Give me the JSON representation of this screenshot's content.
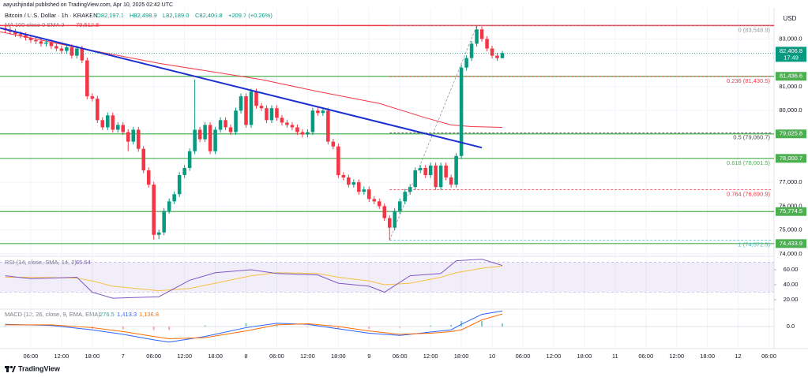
{
  "chart_data": {
    "type": "candlestick",
    "publisher": "aayushjindal published on TradingView.com, Apr 10, 2025 02:42 UTC",
    "title": "Bitcoin / U.S. Dollar · 1h · KRAKEN",
    "ohlc_legend": [
      "O82,197.1",
      "H82,498.9",
      "L82,189.0",
      "C82,406.8",
      "+209.7 (+0.26%)"
    ],
    "ma_legend": "MA 100 close 0 SMA 9",
    "ma_value": "79,512.8",
    "currency": "USD",
    "last_price": {
      "value": 82406.8,
      "label": "82,406.8"
    },
    "countdown": "17:49",
    "brand": "TradingView",
    "up_color": "#089981",
    "down_color": "#f23645",
    "grid": true,
    "xlim": [
      0,
      151
    ],
    "xticks": [
      {
        "value": 6,
        "label": "06:00"
      },
      {
        "value": 12,
        "label": "12:00"
      },
      {
        "value": 18,
        "label": "18:00"
      },
      {
        "value": 24,
        "label": "7"
      },
      {
        "value": 30,
        "label": "06:00"
      },
      {
        "value": 36,
        "label": "12:00"
      },
      {
        "value": 42,
        "label": "18:00"
      },
      {
        "value": 48,
        "label": "8"
      },
      {
        "value": 54,
        "label": "06:00"
      },
      {
        "value": 60,
        "label": "12:00"
      },
      {
        "value": 66,
        "label": "18:00"
      },
      {
        "value": 72,
        "label": "9"
      },
      {
        "value": 78,
        "label": "06:00"
      },
      {
        "value": 84,
        "label": "12:00"
      },
      {
        "value": 90,
        "label": "18:00"
      },
      {
        "value": 96,
        "label": "10"
      },
      {
        "value": 102,
        "label": "06:00"
      },
      {
        "value": 108,
        "label": "12:00"
      },
      {
        "value": 114,
        "label": "18:00"
      },
      {
        "value": 120,
        "label": "11"
      },
      {
        "value": 126,
        "label": "06:00"
      },
      {
        "value": 132,
        "label": "12:00"
      },
      {
        "value": 138,
        "label": "18:00"
      },
      {
        "value": 144,
        "label": "12"
      },
      {
        "value": 150,
        "label": "06:00"
      }
    ],
    "ylim": [
      73900,
      84300
    ],
    "yticks": [
      {
        "value": 74000,
        "label": "74,000.0"
      },
      {
        "value": 75000,
        "label": "75,000.0"
      },
      {
        "value": 76000,
        "label": "76,000.0"
      },
      {
        "value": 77000,
        "label": "77,000.0"
      },
      {
        "value": 80000,
        "label": "80,000.0"
      },
      {
        "value": 81000,
        "label": "81,000.0"
      },
      {
        "value": 83000,
        "label": "83,000.0"
      }
    ],
    "x": [
      1,
      2,
      3,
      4,
      5,
      6,
      7,
      8,
      9,
      10,
      11,
      12,
      13,
      14,
      15,
      16,
      17,
      18,
      19,
      20,
      21,
      22,
      23,
      24,
      25,
      26,
      27,
      28,
      29,
      30,
      31,
      32,
      33,
      34,
      35,
      36,
      37,
      38,
      39,
      40,
      41,
      42,
      43,
      44,
      45,
      46,
      47,
      48,
      49,
      50,
      51,
      52,
      53,
      54,
      55,
      56,
      57,
      58,
      59,
      60,
      61,
      62,
      63,
      64,
      65,
      66,
      67,
      68,
      69,
      70,
      71,
      72,
      73,
      74,
      75,
      76,
      77,
      78,
      79,
      80,
      81,
      82,
      83,
      84,
      85,
      86,
      87,
      88,
      89,
      90,
      91,
      92,
      93,
      94,
      95,
      96,
      97,
      98
    ],
    "open": [
      83450,
      83380,
      83300,
      83200,
      83150,
      83050,
      82950,
      82900,
      82800,
      82850,
      82700,
      82600,
      82500,
      82650,
      82300,
      82600,
      82100,
      80600,
      80500,
      79600,
      79300,
      79800,
      79200,
      79400,
      79100,
      78700,
      79200,
      78400,
      77500,
      76900,
      74800,
      74900,
      75800,
      76200,
      76500,
      77300,
      77600,
      78300,
      79200,
      78800,
      79400,
      78300,
      79200,
      79600,
      79300,
      79100,
      80000,
      80600,
      79400,
      80800,
      80200,
      80100,
      79600,
      80100,
      79700,
      79500,
      79400,
      79300,
      79100,
      79000,
      79100,
      80000,
      79900,
      80000,
      78700,
      78500,
      77300,
      77200,
      76900,
      77000,
      76600,
      76700,
      76300,
      76200,
      76000,
      75500,
      75100,
      75800,
      76200,
      76600,
      76800,
      77500,
      77600,
      77300,
      77700,
      76800,
      77700,
      77200,
      76900,
      78100,
      81800,
      82200,
      82800,
      83400,
      83000,
      82600,
      82300,
      82197.1
    ],
    "high": [
      83570,
      83500,
      83420,
      83320,
      83270,
      83170,
      83070,
      83020,
      82970,
      82970,
      82820,
      82720,
      82770,
      82770,
      82720,
      82720,
      82220,
      80720,
      80620,
      79720,
      79920,
      79920,
      79520,
      79520,
      79220,
      79320,
      79320,
      78520,
      77620,
      77020,
      75020,
      75920,
      76320,
      76620,
      77420,
      77720,
      78420,
      81300,
      79320,
      79520,
      79520,
      79320,
      79720,
      79720,
      79420,
      80120,
      80720,
      80720,
      80920,
      80920,
      80320,
      80220,
      80220,
      80220,
      79820,
      79620,
      79520,
      79420,
      79220,
      79220,
      80120,
      80120,
      80120,
      80120,
      78820,
      78620,
      77420,
      77320,
      77120,
      77120,
      76820,
      76820,
      76420,
      76320,
      76120,
      75620,
      75920,
      76320,
      76720,
      76920,
      77620,
      77720,
      77720,
      77820,
      77820,
      77820,
      77820,
      77320,
      78220,
      81920,
      82320,
      82920,
      83548.9,
      83520,
      83120,
      82720,
      82420,
      82498.9
    ],
    "low": [
      83260,
      83180,
      83080,
      83030,
      82930,
      82830,
      82780,
      82680,
      82680,
      82580,
      82480,
      82380,
      82380,
      82180,
      82180,
      81980,
      80480,
      80380,
      79480,
      79180,
      79180,
      79080,
      79080,
      78980,
      78300,
      78580,
      78280,
      77380,
      76780,
      74600,
      74620,
      74780,
      75680,
      76080,
      76380,
      77180,
      77480,
      78180,
      78680,
      78680,
      78180,
      78180,
      79080,
      79180,
      78980,
      78980,
      79880,
      79280,
      79280,
      80080,
      79980,
      79480,
      79480,
      79580,
      79380,
      79280,
      79180,
      78980,
      78880,
      78880,
      78980,
      79780,
      79780,
      78580,
      78380,
      77180,
      77080,
      76780,
      76780,
      76480,
      76480,
      76180,
      76080,
      75880,
      75380,
      74572.5,
      74980,
      75680,
      76080,
      76480,
      76680,
      77380,
      77180,
      77180,
      76680,
      76680,
      77080,
      76780,
      76780,
      77980,
      81680,
      82080,
      82680,
      82880,
      82480,
      82180,
      82080,
      82189.0
    ],
    "close": [
      83380,
      83300,
      83200,
      83150,
      83050,
      82950,
      82900,
      82800,
      82850,
      82700,
      82600,
      82500,
      82650,
      82300,
      82600,
      82100,
      80600,
      80500,
      79600,
      79300,
      79800,
      79200,
      79400,
      79100,
      78700,
      79200,
      78400,
      77500,
      76900,
      74800,
      74900,
      75800,
      76200,
      76500,
      77300,
      77600,
      78300,
      79200,
      78800,
      79400,
      78300,
      79200,
      79600,
      79300,
      79100,
      80000,
      80600,
      79400,
      80800,
      80200,
      80100,
      79600,
      80100,
      79700,
      79500,
      79400,
      79300,
      79100,
      79000,
      79100,
      80000,
      79900,
      80000,
      78700,
      78500,
      77300,
      77200,
      76900,
      77000,
      76600,
      76700,
      76300,
      76200,
      76000,
      75500,
      75100,
      75800,
      76200,
      76600,
      76800,
      77500,
      77600,
      77300,
      77700,
      76800,
      77700,
      77200,
      76900,
      78100,
      81800,
      82200,
      82800,
      83400,
      83000,
      82600,
      82300,
      82197.1,
      82406.8
    ],
    "ma": {
      "color": "#f23645",
      "x": [
        0,
        16,
        31,
        51,
        62,
        74,
        83,
        88,
        92,
        98
      ],
      "values": [
        83300,
        82600,
        81980,
        81300,
        80800,
        80300,
        79700,
        79400,
        79330,
        79300
      ]
    },
    "trendline": {
      "color": "#1c2fd1",
      "x": [
        0,
        94
      ],
      "y": [
        83460,
        78450
      ]
    },
    "resistance": {
      "value": 83560,
      "color": "#f23645"
    },
    "levels": {
      "color": "#4caf50",
      "items": [
        {
          "value": 81436.6,
          "label": "81,436.6"
        },
        {
          "value": 79025.8,
          "label": "79,025.8"
        },
        {
          "value": 78000.7,
          "label": "78,000.7"
        },
        {
          "value": 75774.5,
          "label": "75,774.5"
        },
        {
          "value": 74433.9,
          "label": "74,433.9"
        }
      ]
    },
    "fib": [
      {
        "value": 83548.9,
        "label": "0 (83,548.9)",
        "color": "#9598a1"
      },
      {
        "value": 81430.5,
        "label": "0.236 (81,430.5)",
        "color": "#f23645"
      },
      {
        "value": 79060.7,
        "label": "0.5 (79,060.7)",
        "color": "#4a4a4a"
      },
      {
        "value": 78001.5,
        "label": "0.618 (78,001.5)",
        "color": "#4caf50"
      },
      {
        "value": 76690.9,
        "label": "0.764 (76,690.9)",
        "color": "#f23645"
      },
      {
        "value": 74572.5,
        "label": "1 (74,572.5)",
        "color": "#4fb8c8"
      }
    ],
    "fib_diagonal": {
      "x": [
        76,
        93
      ],
      "y": [
        74572.5,
        83548.9
      ]
    },
    "rsi": {
      "legend": "RSI (14, close, SMA, 14, 2)",
      "value_label": "65.64",
      "color": "#7e57c2",
      "ma_color": "#f5c044",
      "ylim": [
        7.4,
        74.7
      ],
      "yticks": [
        {
          "value": 20,
          "label": "20.00"
        },
        {
          "value": 40,
          "label": "40.00"
        },
        {
          "value": 60,
          "label": "60.00"
        }
      ],
      "band": [
        30,
        70
      ],
      "x": [
        1,
        6,
        15,
        18,
        22,
        31,
        37,
        42,
        49,
        54,
        62,
        66,
        72,
        75,
        80,
        86,
        89,
        94,
        98
      ],
      "values": [
        52,
        48,
        50,
        30,
        22,
        24,
        46,
        56,
        60,
        55,
        53,
        42,
        38,
        30,
        52,
        55,
        72,
        74,
        65.64
      ],
      "ma": [
        50,
        50,
        49,
        45,
        38,
        32,
        35,
        42,
        52,
        56,
        55,
        50,
        45,
        40,
        42,
        50,
        56,
        62,
        65
      ]
    },
    "macd": {
      "legend": "MACD (12, 26, close, 9, EMA, EMA)",
      "hist_label": "276.5",
      "macd_label": "1,413.3",
      "signal_label": "1,136.8",
      "macd_color": "#2962ff",
      "signal_color": "#ff6d00",
      "hist_up": "#80cbc4",
      "hist_down": "#f7a9a7",
      "ylim": [
        -1850,
        1570
      ],
      "yticks": [
        {
          "value": 0,
          "label": "0.0"
        }
      ],
      "x": [
        1,
        10,
        18,
        24,
        30,
        33,
        40,
        48,
        54,
        60,
        66,
        72,
        78,
        84,
        88,
        90,
        94,
        98
      ],
      "macd": [
        200,
        100,
        -300,
        -700,
        -1200,
        -1400,
        -900,
        -100,
        300,
        200,
        -200,
        -600,
        -800,
        -500,
        -300,
        200,
        1100,
        1413.3
      ],
      "signal": [
        150,
        150,
        -100,
        -450,
        -900,
        -1100,
        -1000,
        -400,
        150,
        250,
        0,
        -400,
        -700,
        -600,
        -450,
        -300,
        600,
        1136.8
      ],
      "hist": [
        50,
        -50,
        -200,
        -250,
        -300,
        -300,
        100,
        300,
        150,
        -50,
        -200,
        -200,
        -100,
        100,
        150,
        500,
        500,
        276.5
      ]
    }
  }
}
